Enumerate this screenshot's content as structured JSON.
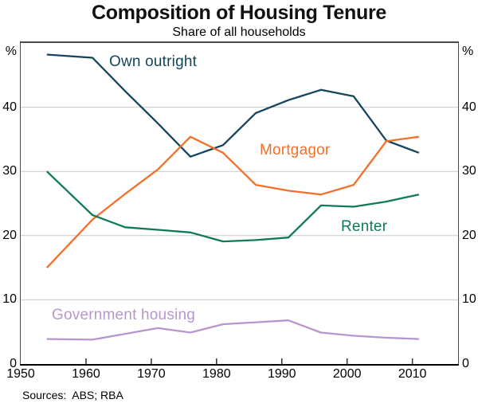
{
  "title": "Composition of Housing Tenure",
  "subtitle": "Share of all households",
  "axes": {
    "unit": "%",
    "yticks": [
      0,
      10,
      20,
      30,
      40
    ],
    "xticks": [
      1950,
      1960,
      1970,
      1980,
      1990,
      2000,
      2010
    ]
  },
  "footer": {
    "sources": "Sources:  ABS; RBA"
  },
  "chart_data": {
    "type": "line",
    "title": "Composition of Housing Tenure",
    "subtitle": "Share of all households",
    "ylabel": "%",
    "x": [
      1954,
      1961,
      1966,
      1971,
      1976,
      1981,
      1986,
      1991,
      1996,
      2001,
      2006,
      2011
    ],
    "series": [
      {
        "name": "Own outright",
        "color": "#14455c",
        "values": [
          48.2,
          47.7,
          42.5,
          37.5,
          32.3,
          34.1,
          39.1,
          41.1,
          42.7,
          41.7,
          34.8,
          32.9
        ]
      },
      {
        "name": "Mortgagor",
        "color": "#f3702b",
        "values": [
          15.0,
          22.5,
          26.5,
          30.3,
          35.4,
          32.9,
          27.9,
          27.0,
          26.4,
          27.9,
          34.7,
          35.4
        ]
      },
      {
        "name": "Renter",
        "color": "#107a52",
        "values": [
          30.0,
          23.2,
          21.3,
          20.9,
          20.5,
          19.1,
          19.3,
          19.7,
          24.7,
          24.5,
          25.3,
          26.4
        ]
      },
      {
        "name": "Government housing",
        "color": "#b795ce",
        "values": [
          3.9,
          3.8,
          4.7,
          5.6,
          4.9,
          6.2,
          6.5,
          6.8,
          4.9,
          4.4,
          4.1,
          3.9
        ]
      }
    ],
    "xlim": [
      1950,
      2017
    ],
    "ylim": [
      0,
      50
    ],
    "yticks": [
      0,
      10,
      20,
      30,
      40
    ],
    "xticks": [
      1950,
      1960,
      1970,
      1980,
      1990,
      2000,
      2010
    ],
    "grid": "horizontal",
    "legend_position": "labels-on-chart",
    "colors": {
      "grid": "#c8c8c8",
      "tick": "#2e2e2e",
      "frame": "#4b4b4b",
      "axis": "#000000"
    }
  }
}
